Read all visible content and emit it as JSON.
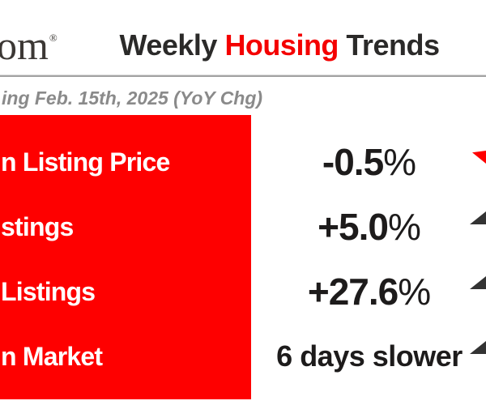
{
  "header": {
    "logo_fragment": "om",
    "logo_registered": "®",
    "title": {
      "part1": "Weekly ",
      "part2": "Housing",
      "part3": " Trends",
      "accent_color": "#f40000",
      "text_color": "#2b2a29"
    },
    "subtitle_fragment": "ing Feb. 15th, 2025 (YoY Chg)"
  },
  "table": {
    "panel_color": "#fe0000",
    "rows": [
      {
        "label_fragment": "n Listing Price",
        "value": "-0.5",
        "suffix": "%",
        "arrow": {
          "direction": "down",
          "color": "#ff0000"
        }
      },
      {
        "label_fragment": "stings",
        "value": "+5.0",
        "suffix": "%",
        "arrow": {
          "direction": "up",
          "color": "#333333"
        }
      },
      {
        "label_fragment": "Listings",
        "value": "+27.6",
        "suffix": "%",
        "arrow": {
          "direction": "up",
          "color": "#333333"
        }
      },
      {
        "label_fragment": "n Market",
        "value": "6 days slower",
        "suffix": "",
        "arrow": {
          "direction": "up",
          "color": "#333333"
        }
      }
    ]
  },
  "chart_data": {
    "type": "table",
    "title": "Weekly Housing Trends",
    "subtitle_visible": "ing Feb. 15th, 2025 (YoY Chg)",
    "categories": [
      "n Listing Price",
      "stings",
      "Listings",
      "n Market"
    ],
    "values": [
      "-0.5%",
      "+5.0%",
      "+27.6%",
      "6 days slower"
    ],
    "trend_directions": [
      "down",
      "up",
      "up",
      "up"
    ],
    "legend_position": "none",
    "grid": false
  }
}
